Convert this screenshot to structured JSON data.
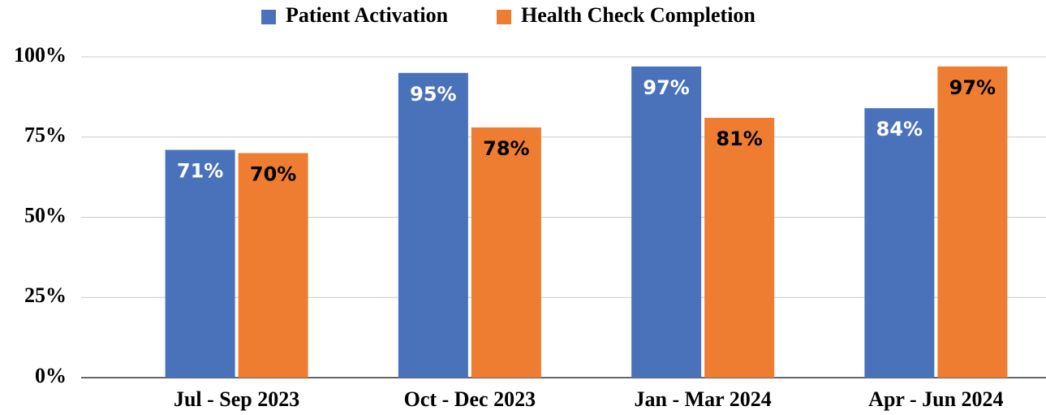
{
  "chart_data": {
    "type": "bar",
    "categories": [
      "Jul - Sep 2023",
      "Oct - Dec 2023",
      "Jan - Mar 2024",
      "Apr - Jun 2024"
    ],
    "series": [
      {
        "name": "Patient Activation",
        "color": "#4a72bb",
        "label_color": "#ffffff",
        "values": [
          71,
          95,
          97,
          84
        ],
        "value_labels": [
          "71%",
          "95%",
          "97%",
          "84%"
        ]
      },
      {
        "name": "Health Check Completion",
        "color": "#ee7d31",
        "label_color": "#000000",
        "values": [
          70,
          78,
          81,
          97
        ],
        "value_labels": [
          "70%",
          "78%",
          "81%",
          "97%"
        ]
      }
    ],
    "ylim": [
      0,
      100
    ],
    "yticks": [
      {
        "value": 0,
        "label": "0%"
      },
      {
        "value": 25,
        "label": "25%"
      },
      {
        "value": 50,
        "label": "50%"
      },
      {
        "value": 75,
        "label": "75%"
      },
      {
        "value": 100,
        "label": "100%"
      }
    ],
    "grid": true,
    "legend": "top"
  }
}
